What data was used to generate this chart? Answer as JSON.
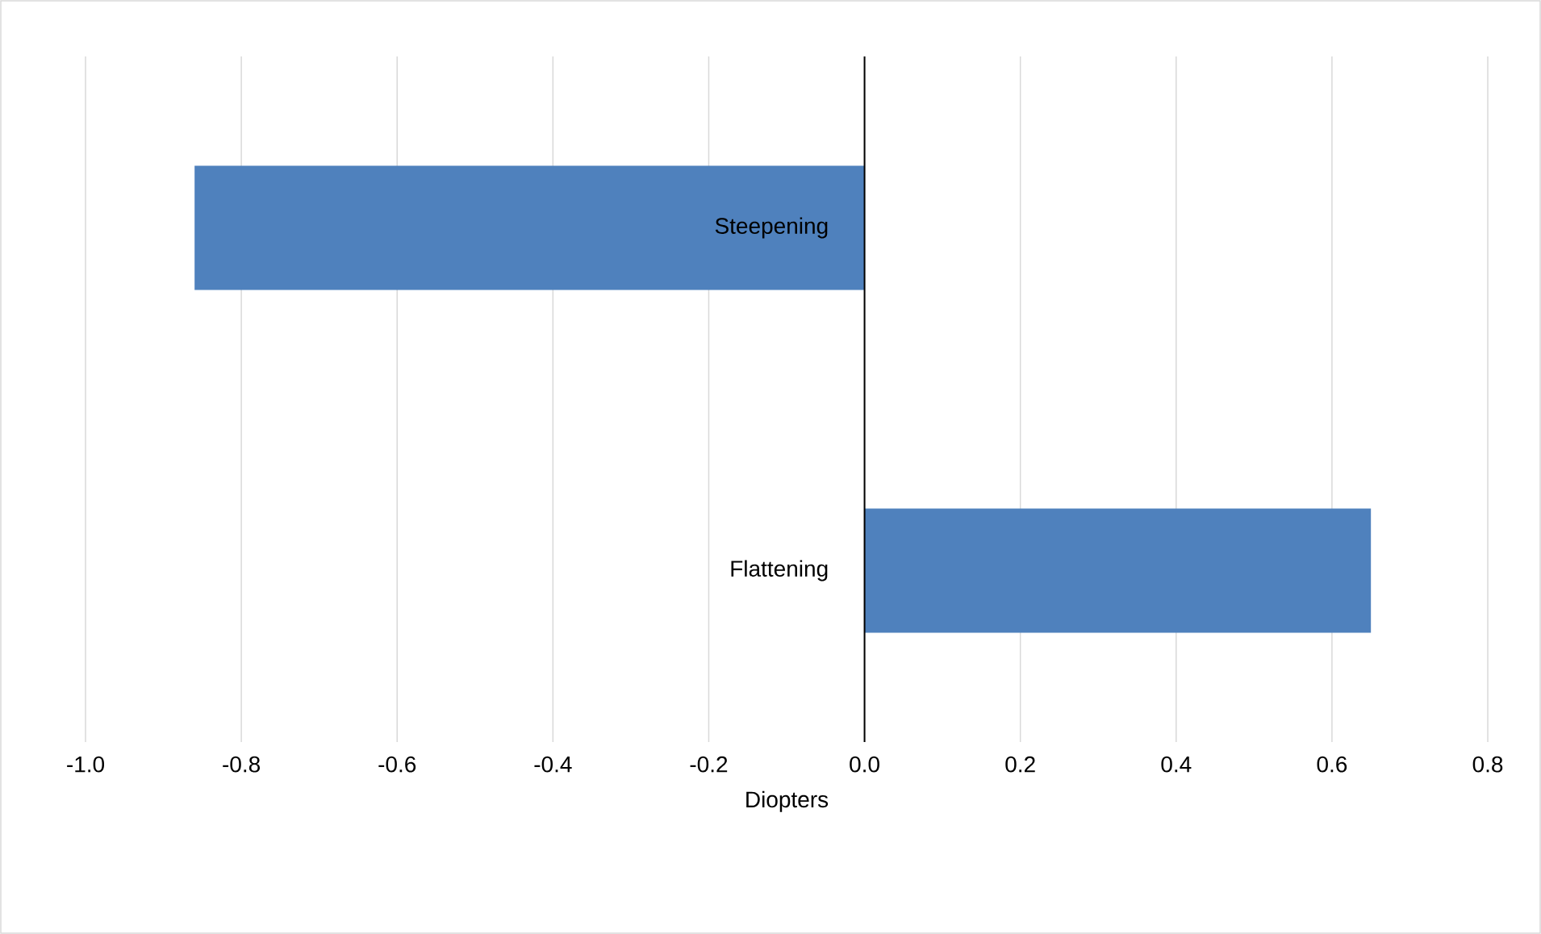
{
  "chart_data": {
    "type": "bar",
    "orientation": "horizontal",
    "xlabel": "Diopters",
    "categories": [
      "Steepening",
      "Flattening"
    ],
    "values": [
      -0.86,
      0.65
    ],
    "color": "#4f81bd",
    "xlim": [
      -1.0,
      0.8
    ],
    "xticks": [
      {
        "value": -1.0,
        "label": "-1.0"
      },
      {
        "value": -0.8,
        "label": "-0.8"
      },
      {
        "value": -0.6,
        "label": "-0.6"
      },
      {
        "value": -0.4,
        "label": "-0.4"
      },
      {
        "value": -0.2,
        "label": "-0.2"
      },
      {
        "value": 0.0,
        "label": "0.0"
      },
      {
        "value": 0.2,
        "label": "0.2"
      },
      {
        "value": 0.4,
        "label": "0.4"
      },
      {
        "value": 0.6,
        "label": "0.6"
      },
      {
        "value": 0.8,
        "label": "0.8"
      }
    ],
    "grid": "x"
  }
}
